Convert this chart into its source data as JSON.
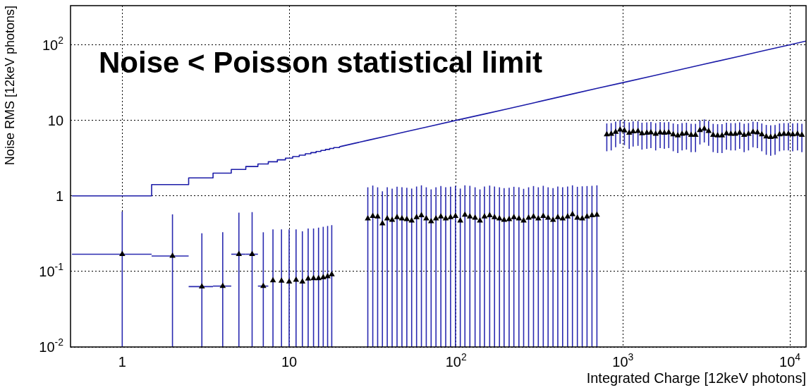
{
  "chart_data": {
    "type": "scatter",
    "xlabel": "Integrated Charge [12keV photons]",
    "ylabel": "Noise RMS [12keV photons]",
    "annotations": [
      "Noise < Poisson statistical limit"
    ],
    "log": "xy",
    "grid": true,
    "legend": false,
    "xlim": [
      0.49,
      12500
    ],
    "ylim": [
      0.01,
      330
    ],
    "xticks": [
      1,
      10,
      {
        "value": 100,
        "label": "10$^{2}$"
      },
      {
        "value": 1000,
        "label": "10$^{3}$"
      },
      {
        "value": 10000,
        "label": "10$^{4}$"
      }
    ],
    "yticks": [
      {
        "value": 0.01,
        "label": "10$^{-2}$"
      },
      {
        "value": 0.1,
        "label": "10$^{-1}$"
      },
      1,
      10,
      {
        "value": 100,
        "label": "10$^{2}$"
      }
    ],
    "series": [
      {
        "type": "step",
        "color": "#1c1ca8",
        "marker": "none",
        "line_style": "solid",
        "x": [
          0.5,
          1.5,
          2.5,
          3.5,
          4.5,
          5.5,
          6.5,
          7.5,
          8.5,
          9.5,
          10.5,
          11.5,
          12.5,
          13.5,
          14.5,
          15.5,
          16.5,
          17.5,
          18.5,
          20
        ],
        "values": [
          1,
          1.41,
          1.73,
          2,
          2.24,
          2.45,
          2.65,
          2.83,
          3,
          3.16,
          3.32,
          3.46,
          3.61,
          3.74,
          3.87,
          4,
          4.12,
          4.24,
          4.36,
          4.47
        ]
      },
      {
        "type": "line",
        "color": "#1c1ca8",
        "marker": "none",
        "line_style": "solid",
        "x": [
          20,
          25,
          30,
          40,
          50,
          70,
          100,
          150,
          200,
          300,
          500,
          700,
          1000,
          1500,
          2000,
          3000,
          5000,
          7000,
          10000,
          12500
        ],
        "values": [
          4.47,
          5,
          5.48,
          6.32,
          7.07,
          8.37,
          10,
          12.2,
          14.1,
          17.3,
          22.4,
          26.5,
          31.6,
          38.7,
          44.7,
          54.8,
          70.7,
          83.7,
          100,
          112
        ]
      },
      {
        "type": "scatter",
        "color": "#000000",
        "marker": "triangle",
        "x": [
          1,
          2,
          3,
          4,
          5,
          6,
          7,
          8,
          9,
          10,
          11,
          12,
          13,
          14,
          15,
          16,
          17,
          18
        ],
        "values": [
          0.169,
          0.16,
          0.063,
          0.064,
          0.169,
          0.169,
          0.064,
          0.076,
          0.075,
          0.073,
          0.077,
          0.073,
          0.08,
          0.081,
          0.081,
          0.083,
          0.086,
          0.091
        ],
        "errors": [
          [
            0.01,
            0.62
          ],
          [
            0.01,
            0.57
          ],
          [
            0.01,
            0.32
          ],
          [
            0.01,
            0.33
          ],
          [
            0.01,
            0.6
          ],
          [
            0.01,
            0.61
          ],
          [
            0.01,
            0.33
          ],
          [
            0.01,
            0.36
          ],
          [
            0.01,
            0.36
          ],
          [
            0.01,
            0.36
          ],
          [
            0.01,
            0.36
          ],
          [
            0.01,
            0.34
          ],
          [
            0.01,
            0.37
          ],
          [
            0.01,
            0.37
          ],
          [
            0.01,
            0.38
          ],
          [
            0.01,
            0.39
          ],
          [
            0.01,
            0.4
          ],
          [
            0.01,
            0.41
          ]
        ],
        "xerrors": [
          0.5,
          0.5,
          0.5,
          0.5,
          0.5,
          0.5,
          0.5,
          null,
          null,
          null,
          null,
          null,
          null,
          null,
          null,
          null,
          null,
          null
        ]
      },
      {
        "type": "scatter",
        "color": "#000000",
        "marker": "triangle",
        "x": [
          29.6,
          31.7,
          33.9,
          36.2,
          38.7,
          41.4,
          44.3,
          47.4,
          50.7,
          54.2,
          58,
          62,
          66.3,
          70.9,
          75.8,
          81.1,
          86.7,
          92.7,
          99.2,
          106,
          113,
          121,
          130,
          139,
          148,
          159,
          170,
          182,
          194,
          208,
          222,
          238,
          254,
          272,
          291,
          311,
          333,
          356,
          381,
          407,
          435,
          466,
          498,
          533,
          570,
          609,
          652,
          698
        ],
        "values": [
          0.5,
          0.54,
          0.53,
          0.43,
          0.5,
          0.48,
          0.52,
          0.5,
          0.49,
          0.47,
          0.52,
          0.55,
          0.5,
          0.46,
          0.5,
          0.53,
          0.5,
          0.52,
          0.54,
          0.47,
          0.56,
          0.53,
          0.51,
          0.47,
          0.53,
          0.55,
          0.52,
          0.5,
          0.48,
          0.49,
          0.52,
          0.5,
          0.47,
          0.51,
          0.53,
          0.5,
          0.54,
          0.51,
          0.48,
          0.52,
          0.5,
          0.53,
          0.57,
          0.51,
          0.5,
          0.53,
          0.55,
          0.56
        ],
        "errors": [
          [
            0.01,
            1.3
          ],
          [
            0.01,
            1.37
          ],
          [
            0.01,
            1.3
          ],
          [
            0.01,
            1.15
          ],
          [
            0.01,
            1.3
          ],
          [
            0.01,
            1.25
          ],
          [
            0.01,
            1.32
          ],
          [
            0.01,
            1.3
          ],
          [
            0.01,
            1.28
          ],
          [
            0.01,
            1.25
          ],
          [
            0.01,
            1.33
          ],
          [
            0.01,
            1.38
          ],
          [
            0.01,
            1.3
          ],
          [
            0.01,
            1.22
          ],
          [
            0.01,
            1.3
          ],
          [
            0.01,
            1.35
          ],
          [
            0.01,
            1.3
          ],
          [
            0.01,
            1.32
          ],
          [
            0.01,
            1.36
          ],
          [
            0.01,
            1.25
          ],
          [
            0.01,
            1.38
          ],
          [
            0.01,
            1.36
          ],
          [
            0.01,
            1.3
          ],
          [
            0.01,
            1.22
          ],
          [
            0.01,
            1.33
          ],
          [
            0.01,
            1.37
          ],
          [
            0.01,
            1.33
          ],
          [
            0.01,
            1.3
          ],
          [
            0.01,
            1.27
          ],
          [
            0.01,
            1.28
          ],
          [
            0.01,
            1.32
          ],
          [
            0.01,
            1.3
          ],
          [
            0.01,
            1.24
          ],
          [
            0.01,
            1.3
          ],
          [
            0.01,
            1.35
          ],
          [
            0.01,
            1.3
          ],
          [
            0.01,
            1.36
          ],
          [
            0.01,
            1.3
          ],
          [
            0.01,
            1.27
          ],
          [
            0.01,
            1.33
          ],
          [
            0.01,
            1.3
          ],
          [
            0.01,
            1.33
          ],
          [
            0.01,
            1.38
          ],
          [
            0.01,
            1.32
          ],
          [
            0.01,
            1.34
          ],
          [
            0.01,
            1.35
          ],
          [
            0.01,
            1.36
          ],
          [
            0.01,
            1.38
          ]
        ]
      },
      {
        "type": "scatter",
        "color": "#000000",
        "marker": "triangle",
        "x": [
          800,
          850,
          904,
          961,
          1020,
          1090,
          1150,
          1230,
          1300,
          1390,
          1470,
          1570,
          1670,
          1770,
          1880,
          2000,
          2130,
          2260,
          2400,
          2560,
          2720,
          2890,
          3070,
          3260,
          3470,
          3690,
          3920,
          4170,
          4430,
          4710,
          5000,
          5320,
          5650,
          6010,
          6390,
          6790,
          7220,
          7670,
          8150,
          8670,
          9210,
          9790,
          10400,
          11100,
          11800
        ],
        "values": [
          6.5,
          6.6,
          7,
          7.5,
          7.3,
          6.8,
          7.1,
          7.2,
          6.7,
          6.8,
          6.9,
          6.6,
          6.9,
          6.8,
          6.9,
          6.5,
          6.3,
          6.6,
          6.7,
          6.4,
          6.4,
          7.4,
          7.7,
          7.2,
          6.4,
          6.3,
          6.3,
          6.7,
          6.6,
          6.6,
          6.8,
          6.4,
          6.6,
          7,
          6.9,
          6.5,
          6.1,
          6,
          6.1,
          6.5,
          6.6,
          6.6,
          6.5,
          6.6,
          6.4
        ],
        "errors": [
          2.6,
          2.6,
          2.6,
          2.6,
          2.6,
          2.6,
          2.6,
          2.6,
          2.6,
          2.6,
          2.6,
          2.6,
          2.6,
          2.6,
          2.6,
          2.6,
          2.6,
          2.6,
          2.6,
          2.6,
          2.6,
          2.6,
          2.6,
          2.6,
          2.6,
          2.6,
          2.6,
          2.6,
          2.6,
          2.6,
          2.6,
          2.6,
          2.6,
          2.6,
          2.6,
          2.6,
          2.6,
          2.6,
          2.6,
          2.6,
          2.6,
          2.6,
          2.6,
          2.6,
          2.6
        ]
      }
    ]
  }
}
